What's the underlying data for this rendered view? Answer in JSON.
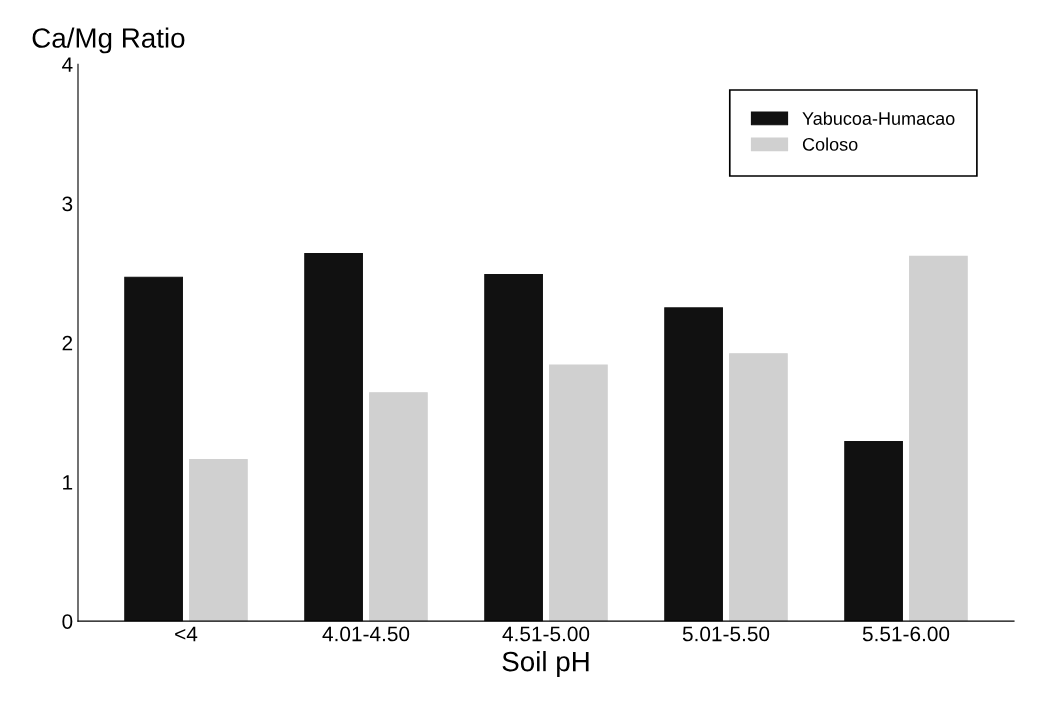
{
  "chart_data": {
    "type": "bar",
    "title": "Ca/Mg Ratio",
    "xlabel": "Soil pH",
    "categories": [
      "<4",
      "4.01-4.50",
      "4.51-5.00",
      "5.01-5.50",
      "5.51-6.00"
    ],
    "series": [
      {
        "name": "Yabucoa-Humacao",
        "color": "#111111",
        "values": [
          2.47,
          2.64,
          2.49,
          2.25,
          1.29
        ]
      },
      {
        "name": "Coloso",
        "color": "#d0d0d0",
        "values": [
          1.16,
          1.64,
          1.84,
          1.92,
          2.62
        ]
      }
    ],
    "ylim": [
      0,
      4
    ],
    "yticks": [
      0,
      1,
      2,
      3,
      4
    ],
    "grid": false,
    "legend": "top right"
  }
}
